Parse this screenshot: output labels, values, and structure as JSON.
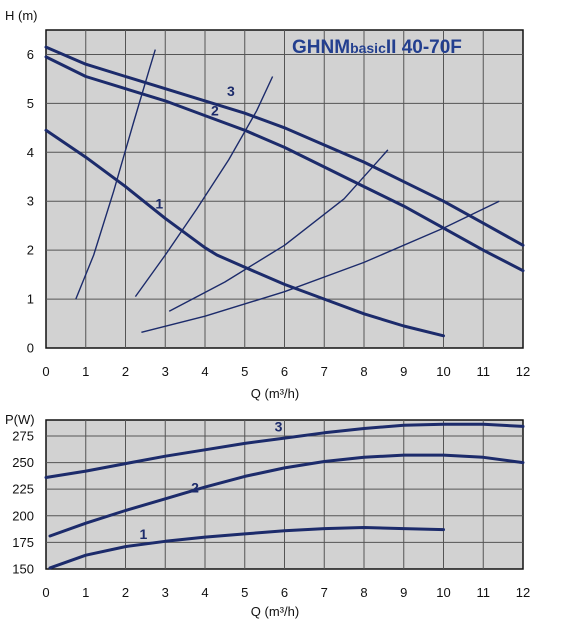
{
  "colors": {
    "curve": "#1c2b6b",
    "title": "#233f8f",
    "plot_bg": "#d2d2d2",
    "grid": "#555555",
    "text": "#111111"
  },
  "chart_data": [
    {
      "type": "line",
      "title": "GHNMbasicII 40-70F",
      "title_main": "GHNM",
      "title_sub": "basic",
      "title_tail": "II 40-70F",
      "ylabel": "H (m)",
      "xlabel": "Q (m³/h)",
      "xlim": [
        0,
        12
      ],
      "ylim": [
        0,
        6.5
      ],
      "xticks": [
        0,
        1,
        2,
        3,
        4,
        5,
        6,
        7,
        8,
        9,
        10,
        11,
        12
      ],
      "yticks": [
        0,
        1,
        2,
        3,
        4,
        5,
        6
      ],
      "grid": true,
      "series": [
        {
          "name": "1",
          "x": [
            0,
            1,
            2,
            3,
            4,
            4.3,
            5,
            6,
            7,
            8,
            9,
            10
          ],
          "y": [
            4.45,
            3.9,
            3.3,
            2.65,
            2.05,
            1.9,
            1.65,
            1.3,
            1.0,
            0.7,
            0.45,
            0.25
          ]
        },
        {
          "name": "2",
          "x": [
            0,
            1,
            2,
            3,
            4,
            5,
            6,
            7,
            8,
            9,
            10,
            11,
            12
          ],
          "y": [
            5.95,
            5.55,
            5.3,
            5.05,
            4.75,
            4.45,
            4.1,
            3.7,
            3.3,
            2.9,
            2.45,
            2.0,
            1.58
          ]
        },
        {
          "name": "3",
          "x": [
            0,
            1,
            2,
            3,
            4,
            5,
            6,
            7,
            8,
            9,
            10,
            11,
            12
          ],
          "y": [
            6.15,
            5.8,
            5.55,
            5.3,
            5.05,
            4.8,
            4.5,
            4.15,
            3.8,
            3.4,
            3.0,
            2.55,
            2.1
          ]
        }
      ],
      "system_curves": [
        {
          "x": [
            0.75,
            1.2,
            1.7,
            2.2,
            2.6,
            2.75
          ],
          "y": [
            1.0,
            1.9,
            3.2,
            4.6,
            5.7,
            6.1
          ]
        },
        {
          "x": [
            2.25,
            3.0,
            3.8,
            4.6,
            5.3,
            5.7
          ],
          "y": [
            1.05,
            1.9,
            2.85,
            3.85,
            4.85,
            5.55
          ]
        },
        {
          "x": [
            3.1,
            4.5,
            6.0,
            7.5,
            8.6
          ],
          "y": [
            0.75,
            1.35,
            2.1,
            3.05,
            4.05
          ]
        },
        {
          "x": [
            2.4,
            4.0,
            6.0,
            8.0,
            10.0,
            11.4
          ],
          "y": [
            0.32,
            0.65,
            1.15,
            1.75,
            2.45,
            3.0
          ]
        }
      ],
      "labels": [
        {
          "text": "1",
          "x": 2.85,
          "y": 2.85
        },
        {
          "text": "2",
          "x": 4.25,
          "y": 4.75
        },
        {
          "text": "3",
          "x": 4.65,
          "y": 5.15
        }
      ]
    },
    {
      "type": "line",
      "ylabel": "P(W)",
      "xlabel": "Q (m³/h)",
      "xlim": [
        0,
        12
      ],
      "ylim": [
        150,
        290
      ],
      "xticks": [
        0,
        1,
        2,
        3,
        4,
        5,
        6,
        7,
        8,
        9,
        10,
        11,
        12
      ],
      "yticks": [
        150,
        175,
        200,
        225,
        250,
        275
      ],
      "grid": true,
      "series": [
        {
          "name": "1",
          "x": [
            0.1,
            1,
            2,
            3,
            4,
            5,
            6,
            7,
            8,
            9,
            10
          ],
          "y": [
            151,
            163,
            171,
            176,
            180,
            183,
            186,
            188,
            189,
            188,
            187
          ]
        },
        {
          "name": "2",
          "x": [
            0.1,
            1,
            2,
            3,
            4,
            5,
            6,
            7,
            8,
            9,
            10,
            11,
            12
          ],
          "y": [
            181,
            193,
            205,
            216,
            227,
            237,
            245,
            251,
            255,
            257,
            257,
            255,
            250
          ]
        },
        {
          "name": "3",
          "x": [
            0,
            1,
            2,
            3,
            4,
            5,
            6,
            7,
            8,
            9,
            10,
            11,
            12
          ],
          "y": [
            236,
            242,
            249,
            256,
            262,
            268,
            273,
            278,
            282,
            285,
            286,
            286,
            284
          ]
        }
      ],
      "labels": [
        {
          "text": "1",
          "x": 2.45,
          "y": 178
        },
        {
          "text": "2",
          "x": 3.75,
          "y": 222
        },
        {
          "text": "3",
          "x": 5.85,
          "y": 279
        }
      ]
    }
  ]
}
